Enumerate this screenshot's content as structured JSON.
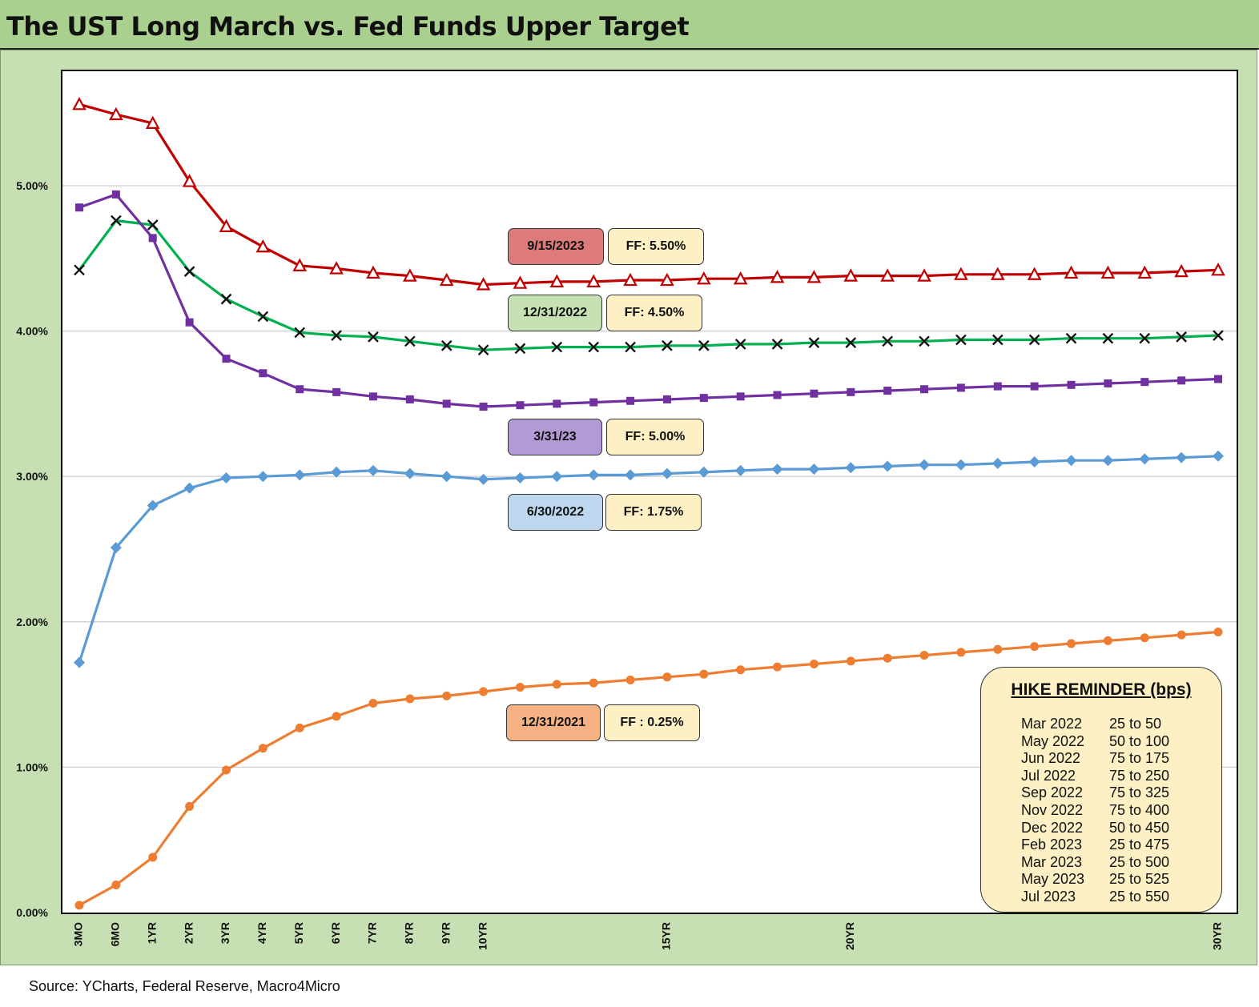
{
  "title": "The UST Long March vs. Fed Funds Upper Target",
  "source": "Source: YCharts, Federal Reserve, Macro4Micro",
  "chart_data": {
    "type": "line",
    "title": "The UST Long March vs. Fed Funds Upper Target",
    "ylim": [
      0,
      5.75
    ],
    "y_ticks": [
      "0.00%",
      "1.00%",
      "2.00%",
      "3.00%",
      "4.00%",
      "5.00%"
    ],
    "y_tick_values": [
      0,
      1,
      2,
      3,
      4,
      5
    ],
    "x_positions": [
      "3MO",
      "6MO",
      "1YR",
      "2YR",
      "3YR",
      "4YR",
      "5YR",
      "6YR",
      "7YR",
      "8YR",
      "9YR",
      "10YR",
      "11YR",
      "12YR",
      "13YR",
      "14YR",
      "15YR",
      "16YR",
      "17YR",
      "18YR",
      "19YR",
      "20YR",
      "21YR",
      "22YR",
      "23YR",
      "24YR",
      "25YR",
      "26YR",
      "27YR",
      "28YR",
      "29YR",
      "30YR"
    ],
    "x_tick_labels": [
      "3MO",
      "6MO",
      "1YR",
      "2YR",
      "3YR",
      "4YR",
      "5YR",
      "6YR",
      "7YR",
      "8YR",
      "9YR",
      "10YR",
      "",
      "",
      "",
      "",
      "15YR",
      "",
      "",
      "",
      "",
      "20YR",
      "",
      "",
      "",
      "",
      "",
      "",
      "",
      "",
      "",
      "30YR"
    ],
    "grid": true,
    "series": [
      {
        "name": "9/15/2023",
        "color": "#c00000",
        "marker": "triangle",
        "values": [
          5.56,
          5.49,
          5.43,
          5.03,
          4.72,
          4.58,
          4.45,
          4.43,
          4.4,
          4.38,
          4.35,
          4.32,
          4.33,
          4.34,
          4.34,
          4.35,
          4.35,
          4.36,
          4.36,
          4.37,
          4.37,
          4.38,
          4.38,
          4.38,
          4.39,
          4.39,
          4.39,
          4.4,
          4.4,
          4.4,
          4.41,
          4.42
        ]
      },
      {
        "name": "12/31/2022",
        "color": "#00b050",
        "marker": "x",
        "values": [
          4.42,
          4.76,
          4.73,
          4.41,
          4.22,
          4.1,
          3.99,
          3.97,
          3.96,
          3.93,
          3.9,
          3.87,
          3.88,
          3.89,
          3.89,
          3.89,
          3.9,
          3.9,
          3.91,
          3.91,
          3.92,
          3.92,
          3.93,
          3.93,
          3.94,
          3.94,
          3.94,
          3.95,
          3.95,
          3.95,
          3.96,
          3.97
        ]
      },
      {
        "name": "3/31/23",
        "color": "#7030a0",
        "marker": "square",
        "values": [
          4.85,
          4.94,
          4.64,
          4.06,
          3.81,
          3.71,
          3.6,
          3.58,
          3.55,
          3.53,
          3.5,
          3.48,
          3.49,
          3.5,
          3.51,
          3.52,
          3.53,
          3.54,
          3.55,
          3.56,
          3.57,
          3.58,
          3.59,
          3.6,
          3.61,
          3.62,
          3.62,
          3.63,
          3.64,
          3.65,
          3.66,
          3.67
        ]
      },
      {
        "name": "6/30/2022",
        "color": "#5b9bd5",
        "marker": "diamond",
        "values": [
          1.72,
          2.51,
          2.8,
          2.92,
          2.99,
          3.0,
          3.01,
          3.03,
          3.04,
          3.02,
          3.0,
          2.98,
          2.99,
          3.0,
          3.01,
          3.01,
          3.02,
          3.03,
          3.04,
          3.05,
          3.05,
          3.06,
          3.07,
          3.08,
          3.08,
          3.09,
          3.1,
          3.11,
          3.11,
          3.12,
          3.13,
          3.14
        ]
      },
      {
        "name": "12/31/2021",
        "color": "#ed7d31",
        "marker": "circle",
        "values": [
          0.05,
          0.19,
          0.38,
          0.73,
          0.98,
          1.13,
          1.27,
          1.35,
          1.44,
          1.47,
          1.49,
          1.52,
          1.55,
          1.57,
          1.58,
          1.6,
          1.62,
          1.64,
          1.67,
          1.69,
          1.71,
          1.73,
          1.75,
          1.77,
          1.79,
          1.81,
          1.83,
          1.85,
          1.87,
          1.89,
          1.91,
          1.93
        ]
      }
    ]
  },
  "labels": [
    {
      "date": "9/15/2023",
      "ff": "FF: 5.50%",
      "color": "#dd7b7b"
    },
    {
      "date": "12/31/2022",
      "ff": "FF: 4.50%",
      "color": "#c6e2b4"
    },
    {
      "date": "3/31/23",
      "ff": "FF: 5.00%",
      "color": "#b49ad4"
    },
    {
      "date": "6/30/2022",
      "ff": "FF: 1.75%",
      "color": "#bdd7ee"
    },
    {
      "date": "12/31/2021",
      "ff": "FF : 0.25%",
      "color": "#f4b183"
    }
  ],
  "ff_box_color": "#fdf0c4",
  "hike_reminder": {
    "title": "HIKE REMINDER (bps)",
    "rows": [
      {
        "month": "Mar 2022",
        "hike": "25 to 50"
      },
      {
        "month": "May 2022",
        "hike": "50 to 100"
      },
      {
        "month": "Jun 2022",
        "hike": "75 to 175"
      },
      {
        "month": "Jul 2022",
        "hike": "75 to 250"
      },
      {
        "month": "Sep 2022",
        "hike": "75 to 325"
      },
      {
        "month": "Nov 2022",
        "hike": "75 to 400"
      },
      {
        "month": "Dec 2022",
        "hike": "50 to 450"
      },
      {
        "month": "Feb 2023",
        "hike": "25 to 475"
      },
      {
        "month": "Mar 2023",
        "hike": "25 to 500"
      },
      {
        "month": "May 2023",
        "hike": "25 to 525"
      },
      {
        "month": "Jul 2023",
        "hike": "25 to 550"
      }
    ]
  }
}
